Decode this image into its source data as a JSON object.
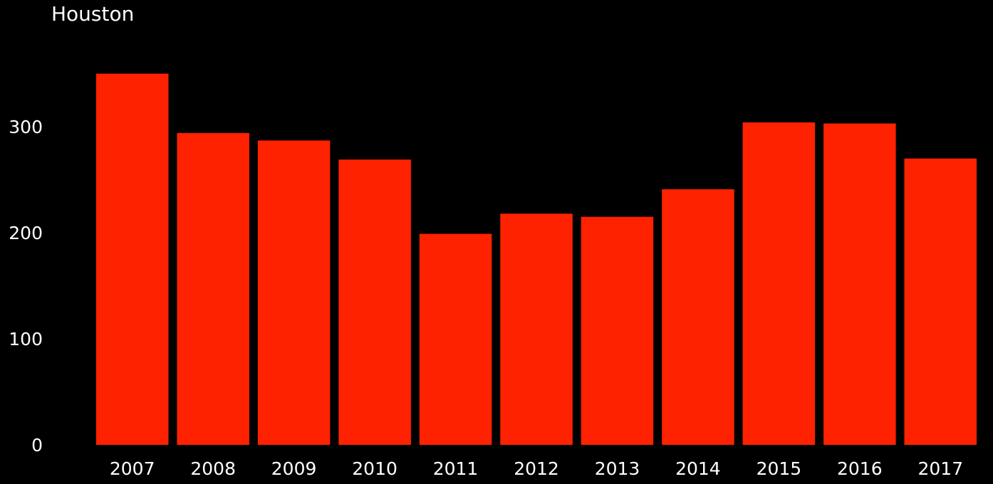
{
  "chart_data": {
    "type": "bar",
    "title": "Houston",
    "xlabel": "",
    "ylabel": "",
    "categories": [
      "2007",
      "2008",
      "2009",
      "2010",
      "2011",
      "2012",
      "2013",
      "2014",
      "2015",
      "2016",
      "2017"
    ],
    "values": [
      350,
      294,
      287,
      269,
      199,
      218,
      215,
      241,
      304,
      303,
      270
    ],
    "ylim": [
      0,
      350
    ],
    "yticks": [
      0,
      100,
      200,
      300
    ],
    "grid": false,
    "bar_color": "#ff2200",
    "background_color": "#000000",
    "text_color": "#ffffff"
  }
}
